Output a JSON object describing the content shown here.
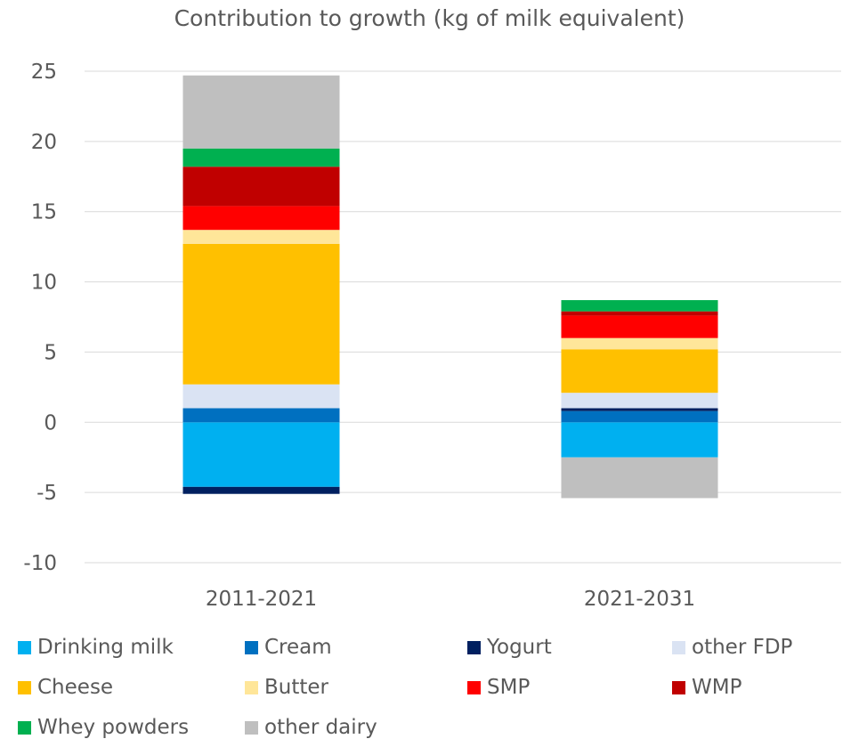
{
  "chart_data": {
    "type": "stacked-bar",
    "title": "Contribution to growth (kg of milk equivalent)",
    "xlabel": "",
    "ylabel": "",
    "ylim": [
      -10,
      25
    ],
    "yticks": [
      25,
      20,
      15,
      10,
      5,
      0,
      -5,
      -10
    ],
    "ytick_labels": [
      "25",
      "20",
      "15",
      "10",
      "5",
      "0",
      "-5",
      "-10"
    ],
    "categories": [
      "2011-2021",
      "2021-2031"
    ],
    "grid": true,
    "legend_position": "bottom",
    "series": [
      {
        "name": "Drinking milk",
        "color": "#00b0f0",
        "values": [
          -4.6,
          -2.5
        ]
      },
      {
        "name": "Cream",
        "color": "#0070c0",
        "values": [
          1.0,
          0.8
        ]
      },
      {
        "name": "Yogurt",
        "color": "#002060",
        "values": [
          -0.5,
          0.2
        ]
      },
      {
        "name": "other FDP",
        "color": "#dae3f3",
        "values": [
          1.7,
          1.1
        ]
      },
      {
        "name": "Cheese",
        "color": "#ffc000",
        "values": [
          10.0,
          3.1
        ]
      },
      {
        "name": "Butter",
        "color": "#ffe699",
        "values": [
          1.0,
          0.8
        ]
      },
      {
        "name": "SMP",
        "color": "#ff0000",
        "values": [
          1.7,
          1.6
        ]
      },
      {
        "name": "WMP",
        "color": "#c00000",
        "values": [
          2.8,
          0.3
        ]
      },
      {
        "name": "Whey powders",
        "color": "#00b050",
        "values": [
          1.3,
          0.8
        ]
      },
      {
        "name": "other dairy",
        "color": "#bfbfbf",
        "values": [
          5.2,
          -2.9
        ]
      }
    ]
  }
}
